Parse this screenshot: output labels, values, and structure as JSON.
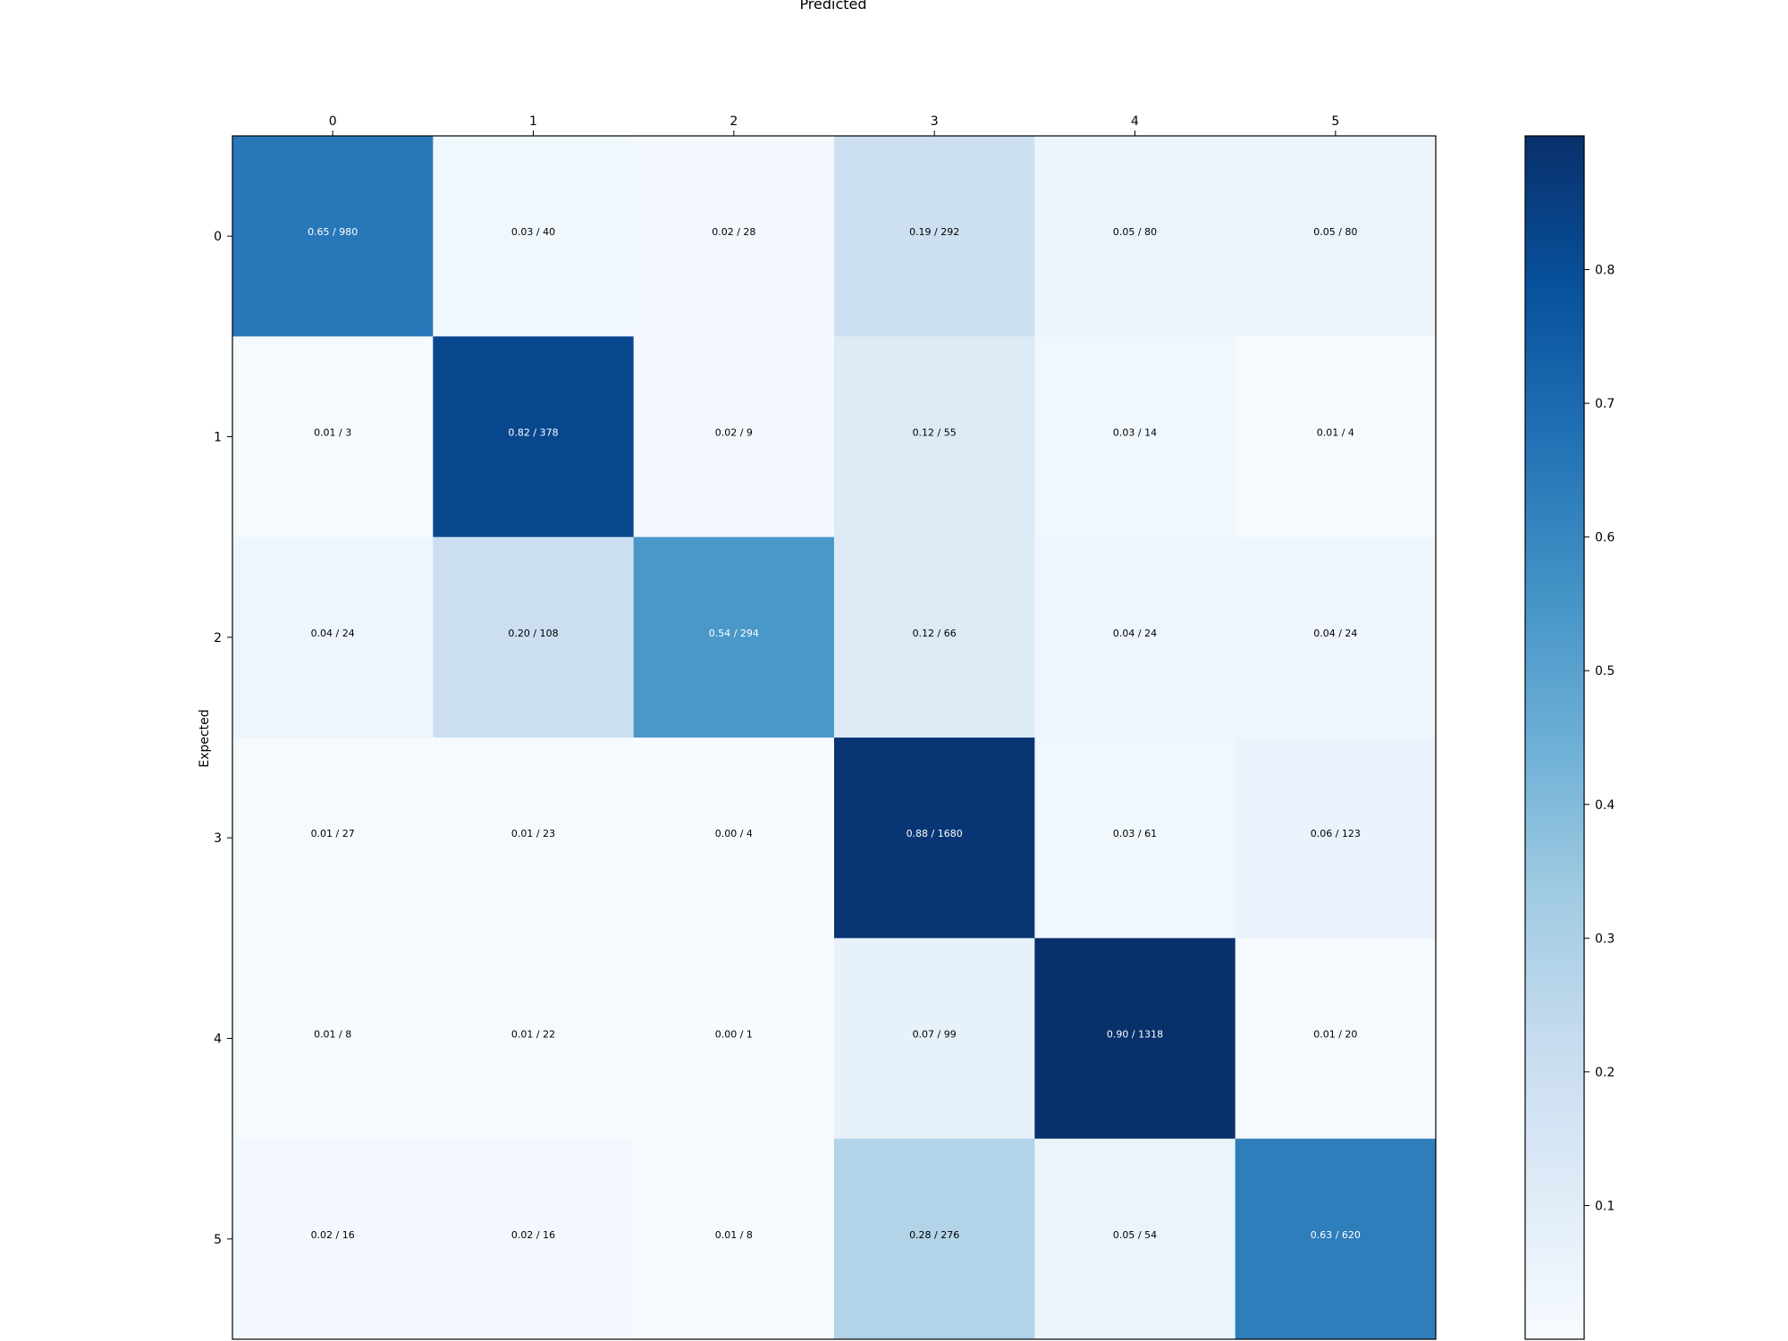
{
  "chart_data": {
    "type": "heatmap",
    "title": "Predicted",
    "xlabel": "Predicted",
    "ylabel": "Expected",
    "x_categories": [
      "0",
      "1",
      "2",
      "3",
      "4",
      "5"
    ],
    "y_categories": [
      "0",
      "1",
      "2",
      "3",
      "4",
      "5"
    ],
    "values": [
      [
        0.65,
        0.03,
        0.02,
        0.19,
        0.05,
        0.05
      ],
      [
        0.01,
        0.82,
        0.02,
        0.12,
        0.03,
        0.01
      ],
      [
        0.04,
        0.2,
        0.54,
        0.12,
        0.04,
        0.04
      ],
      [
        0.01,
        0.01,
        0.0,
        0.88,
        0.03,
        0.06
      ],
      [
        0.01,
        0.01,
        0.0,
        0.07,
        0.9,
        0.01
      ],
      [
        0.02,
        0.02,
        0.01,
        0.28,
        0.05,
        0.63
      ]
    ],
    "cell_labels": [
      [
        "0.65 / 980",
        "0.03 / 40",
        "0.02 / 28",
        "0.19 / 292",
        "0.05 / 80",
        "0.05 / 80"
      ],
      [
        "0.01 / 3",
        "0.82 / 378",
        "0.02 / 9",
        "0.12 / 55",
        "0.03 / 14",
        "0.01 / 4"
      ],
      [
        "0.04 / 24",
        "0.20 / 108",
        "0.54 / 294",
        "0.12 / 66",
        "0.04 / 24",
        "0.04 / 24"
      ],
      [
        "0.01 / 27",
        "0.01 / 23",
        "0.00 / 4",
        "0.88 / 1680",
        "0.03 / 61",
        "0.06 / 123"
      ],
      [
        "0.01 / 8",
        "0.01 / 22",
        "0.00 / 1",
        "0.07 / 99",
        "0.90 / 1318",
        "0.01 / 20"
      ],
      [
        "0.02 / 16",
        "0.02 / 16",
        "0.01 / 8",
        "0.28 / 276",
        "0.05 / 54",
        "0.63 / 620"
      ]
    ],
    "colorbar": {
      "range": [
        0.0,
        0.9
      ],
      "ticks": [
        "0.1",
        "0.2",
        "0.3",
        "0.4",
        "0.5",
        "0.6",
        "0.7",
        "0.8"
      ],
      "colormap": "Blues"
    },
    "x_axis_position": "top",
    "grid": false,
    "legend": "colorbar-right"
  }
}
